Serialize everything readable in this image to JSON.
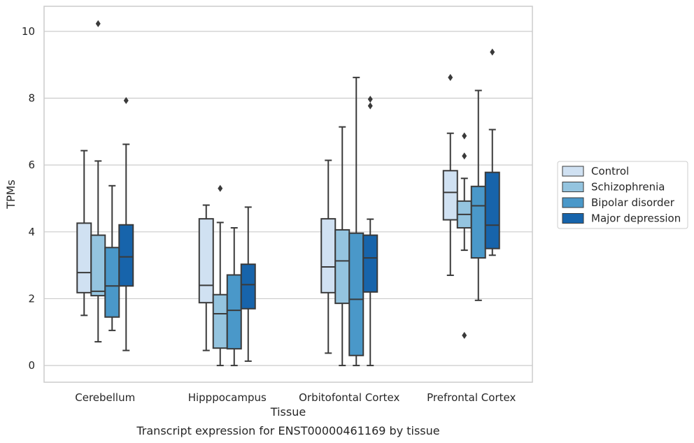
{
  "chart_data": {
    "type": "box",
    "caption": "Transcript expression for ENST00000461169 by tissue",
    "xlabel": "Tissue",
    "ylabel": "TPMs",
    "ylim": [
      -0.5,
      10.75
    ],
    "yticks": [
      0,
      2,
      4,
      6,
      8,
      10
    ],
    "grid": "horizontal",
    "legend_position": "right",
    "categories": [
      "Cerebellum",
      "Hipppocampus",
      "Orbitofontal Cortex",
      "Prefrontal Cortex"
    ],
    "series": [
      {
        "name": "Control",
        "color": "#d0e1f2",
        "boxes": [
          {
            "whislo": 1.5,
            "q1": 2.18,
            "med": 2.78,
            "q3": 4.26,
            "whishi": 6.43,
            "fliers": []
          },
          {
            "whislo": 0.45,
            "q1": 1.88,
            "med": 2.4,
            "q3": 4.39,
            "whishi": 4.8,
            "fliers": []
          },
          {
            "whislo": 0.37,
            "q1": 2.18,
            "med": 2.95,
            "q3": 4.39,
            "whishi": 6.14,
            "fliers": []
          },
          {
            "whislo": 2.7,
            "q1": 4.36,
            "med": 5.18,
            "q3": 5.83,
            "whishi": 6.95,
            "fliers": [
              8.62
            ]
          }
        ]
      },
      {
        "name": "Schizophrenia",
        "color": "#94c4df",
        "boxes": [
          {
            "whislo": 0.71,
            "q1": 2.09,
            "med": 2.22,
            "q3": 3.9,
            "whishi": 6.12,
            "fliers": [
              10.23
            ]
          },
          {
            "whislo": 0.0,
            "q1": 0.52,
            "med": 1.55,
            "q3": 2.12,
            "whishi": 4.28,
            "fliers": [
              5.3
            ]
          },
          {
            "whislo": 0.0,
            "q1": 1.86,
            "med": 3.13,
            "q3": 4.06,
            "whishi": 7.14,
            "fliers": []
          },
          {
            "whislo": 3.45,
            "q1": 4.12,
            "med": 4.52,
            "q3": 4.92,
            "whishi": 5.6,
            "fliers": [
              6.87,
              6.27,
              0.9
            ]
          }
        ]
      },
      {
        "name": "Bipolar disorder",
        "color": "#4a98c9",
        "boxes": [
          {
            "whislo": 1.05,
            "q1": 1.45,
            "med": 2.38,
            "q3": 3.53,
            "whishi": 5.38,
            "fliers": []
          },
          {
            "whislo": 0.0,
            "q1": 0.5,
            "med": 1.65,
            "q3": 2.71,
            "whishi": 4.12,
            "fliers": []
          },
          {
            "whislo": 0.0,
            "q1": 0.3,
            "med": 1.98,
            "q3": 3.96,
            "whishi": 8.62,
            "fliers": []
          },
          {
            "whislo": 1.95,
            "q1": 3.22,
            "med": 4.78,
            "q3": 5.36,
            "whishi": 8.23,
            "fliers": []
          }
        ]
      },
      {
        "name": "Major depression",
        "color": "#1764ab",
        "boxes": [
          {
            "whislo": 0.45,
            "q1": 2.38,
            "med": 3.25,
            "q3": 4.21,
            "whishi": 6.62,
            "fliers": [
              7.93
            ]
          },
          {
            "whislo": 0.13,
            "q1": 1.7,
            "med": 2.42,
            "q3": 3.03,
            "whishi": 4.74,
            "fliers": []
          },
          {
            "whislo": 0.0,
            "q1": 2.2,
            "med": 3.22,
            "q3": 3.9,
            "whishi": 4.38,
            "fliers": [
              7.97,
              7.77
            ]
          },
          {
            "whislo": 3.3,
            "q1": 3.5,
            "med": 4.2,
            "q3": 5.78,
            "whishi": 7.06,
            "fliers": [
              9.38
            ]
          }
        ]
      }
    ]
  }
}
